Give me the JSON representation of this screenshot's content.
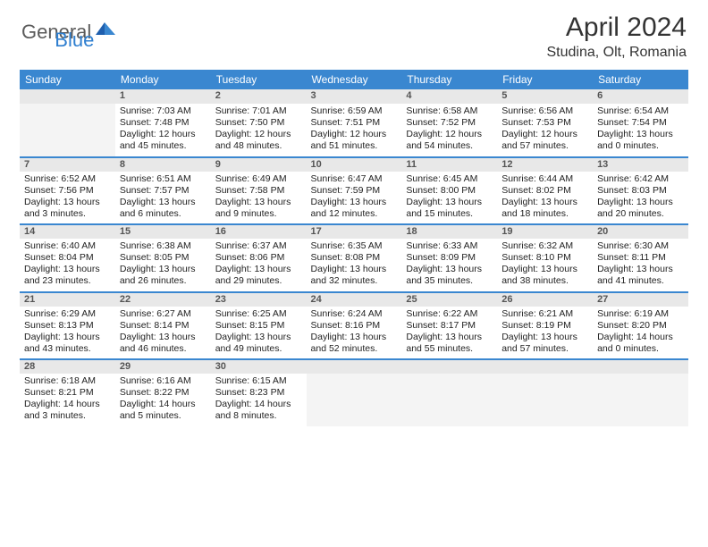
{
  "brand": {
    "part1": "General",
    "part2": "Blue"
  },
  "title": "April 2024",
  "location": "Studina, Olt, Romania",
  "colors": {
    "header_bg": "#3a87d0",
    "header_text": "#ffffff",
    "daynum_bg": "#e8e8e8",
    "rule": "#3a87d0",
    "text": "#222222",
    "brand_gray": "#5a5a5a",
    "brand_blue": "#2f7fd0"
  },
  "weekdays": [
    "Sunday",
    "Monday",
    "Tuesday",
    "Wednesday",
    "Thursday",
    "Friday",
    "Saturday"
  ],
  "weeks": [
    [
      {
        "n": "",
        "empty": true
      },
      {
        "n": "1",
        "sr": "Sunrise: 7:03 AM",
        "ss": "Sunset: 7:48 PM",
        "d1": "Daylight: 12 hours",
        "d2": "and 45 minutes."
      },
      {
        "n": "2",
        "sr": "Sunrise: 7:01 AM",
        "ss": "Sunset: 7:50 PM",
        "d1": "Daylight: 12 hours",
        "d2": "and 48 minutes."
      },
      {
        "n": "3",
        "sr": "Sunrise: 6:59 AM",
        "ss": "Sunset: 7:51 PM",
        "d1": "Daylight: 12 hours",
        "d2": "and 51 minutes."
      },
      {
        "n": "4",
        "sr": "Sunrise: 6:58 AM",
        "ss": "Sunset: 7:52 PM",
        "d1": "Daylight: 12 hours",
        "d2": "and 54 minutes."
      },
      {
        "n": "5",
        "sr": "Sunrise: 6:56 AM",
        "ss": "Sunset: 7:53 PM",
        "d1": "Daylight: 12 hours",
        "d2": "and 57 minutes."
      },
      {
        "n": "6",
        "sr": "Sunrise: 6:54 AM",
        "ss": "Sunset: 7:54 PM",
        "d1": "Daylight: 13 hours",
        "d2": "and 0 minutes."
      }
    ],
    [
      {
        "n": "7",
        "sr": "Sunrise: 6:52 AM",
        "ss": "Sunset: 7:56 PM",
        "d1": "Daylight: 13 hours",
        "d2": "and 3 minutes."
      },
      {
        "n": "8",
        "sr": "Sunrise: 6:51 AM",
        "ss": "Sunset: 7:57 PM",
        "d1": "Daylight: 13 hours",
        "d2": "and 6 minutes."
      },
      {
        "n": "9",
        "sr": "Sunrise: 6:49 AM",
        "ss": "Sunset: 7:58 PM",
        "d1": "Daylight: 13 hours",
        "d2": "and 9 minutes."
      },
      {
        "n": "10",
        "sr": "Sunrise: 6:47 AM",
        "ss": "Sunset: 7:59 PM",
        "d1": "Daylight: 13 hours",
        "d2": "and 12 minutes."
      },
      {
        "n": "11",
        "sr": "Sunrise: 6:45 AM",
        "ss": "Sunset: 8:00 PM",
        "d1": "Daylight: 13 hours",
        "d2": "and 15 minutes."
      },
      {
        "n": "12",
        "sr": "Sunrise: 6:44 AM",
        "ss": "Sunset: 8:02 PM",
        "d1": "Daylight: 13 hours",
        "d2": "and 18 minutes."
      },
      {
        "n": "13",
        "sr": "Sunrise: 6:42 AM",
        "ss": "Sunset: 8:03 PM",
        "d1": "Daylight: 13 hours",
        "d2": "and 20 minutes."
      }
    ],
    [
      {
        "n": "14",
        "sr": "Sunrise: 6:40 AM",
        "ss": "Sunset: 8:04 PM",
        "d1": "Daylight: 13 hours",
        "d2": "and 23 minutes."
      },
      {
        "n": "15",
        "sr": "Sunrise: 6:38 AM",
        "ss": "Sunset: 8:05 PM",
        "d1": "Daylight: 13 hours",
        "d2": "and 26 minutes."
      },
      {
        "n": "16",
        "sr": "Sunrise: 6:37 AM",
        "ss": "Sunset: 8:06 PM",
        "d1": "Daylight: 13 hours",
        "d2": "and 29 minutes."
      },
      {
        "n": "17",
        "sr": "Sunrise: 6:35 AM",
        "ss": "Sunset: 8:08 PM",
        "d1": "Daylight: 13 hours",
        "d2": "and 32 minutes."
      },
      {
        "n": "18",
        "sr": "Sunrise: 6:33 AM",
        "ss": "Sunset: 8:09 PM",
        "d1": "Daylight: 13 hours",
        "d2": "and 35 minutes."
      },
      {
        "n": "19",
        "sr": "Sunrise: 6:32 AM",
        "ss": "Sunset: 8:10 PM",
        "d1": "Daylight: 13 hours",
        "d2": "and 38 minutes."
      },
      {
        "n": "20",
        "sr": "Sunrise: 6:30 AM",
        "ss": "Sunset: 8:11 PM",
        "d1": "Daylight: 13 hours",
        "d2": "and 41 minutes."
      }
    ],
    [
      {
        "n": "21",
        "sr": "Sunrise: 6:29 AM",
        "ss": "Sunset: 8:13 PM",
        "d1": "Daylight: 13 hours",
        "d2": "and 43 minutes."
      },
      {
        "n": "22",
        "sr": "Sunrise: 6:27 AM",
        "ss": "Sunset: 8:14 PM",
        "d1": "Daylight: 13 hours",
        "d2": "and 46 minutes."
      },
      {
        "n": "23",
        "sr": "Sunrise: 6:25 AM",
        "ss": "Sunset: 8:15 PM",
        "d1": "Daylight: 13 hours",
        "d2": "and 49 minutes."
      },
      {
        "n": "24",
        "sr": "Sunrise: 6:24 AM",
        "ss": "Sunset: 8:16 PM",
        "d1": "Daylight: 13 hours",
        "d2": "and 52 minutes."
      },
      {
        "n": "25",
        "sr": "Sunrise: 6:22 AM",
        "ss": "Sunset: 8:17 PM",
        "d1": "Daylight: 13 hours",
        "d2": "and 55 minutes."
      },
      {
        "n": "26",
        "sr": "Sunrise: 6:21 AM",
        "ss": "Sunset: 8:19 PM",
        "d1": "Daylight: 13 hours",
        "d2": "and 57 minutes."
      },
      {
        "n": "27",
        "sr": "Sunrise: 6:19 AM",
        "ss": "Sunset: 8:20 PM",
        "d1": "Daylight: 14 hours",
        "d2": "and 0 minutes."
      }
    ],
    [
      {
        "n": "28",
        "sr": "Sunrise: 6:18 AM",
        "ss": "Sunset: 8:21 PM",
        "d1": "Daylight: 14 hours",
        "d2": "and 3 minutes."
      },
      {
        "n": "29",
        "sr": "Sunrise: 6:16 AM",
        "ss": "Sunset: 8:22 PM",
        "d1": "Daylight: 14 hours",
        "d2": "and 5 minutes."
      },
      {
        "n": "30",
        "sr": "Sunrise: 6:15 AM",
        "ss": "Sunset: 8:23 PM",
        "d1": "Daylight: 14 hours",
        "d2": "and 8 minutes."
      },
      {
        "n": "",
        "empty": true
      },
      {
        "n": "",
        "empty": true
      },
      {
        "n": "",
        "empty": true
      },
      {
        "n": "",
        "empty": true
      }
    ]
  ]
}
